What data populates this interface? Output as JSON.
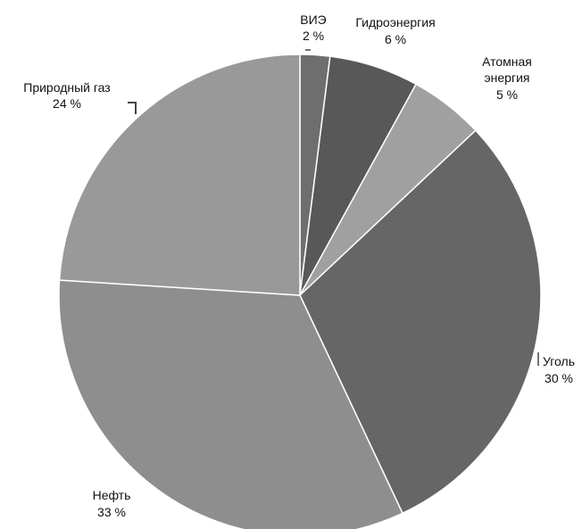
{
  "chart_data": {
    "type": "pie",
    "slices": [
      {
        "label": "ВИЭ",
        "value_label": "2 %",
        "value": 2,
        "color": "#6e6e6e"
      },
      {
        "label": "Гидроэнергия",
        "value_label": "6 %",
        "value": 6,
        "color": "#585858"
      },
      {
        "label": "Атомная энергия",
        "label_lines": [
          "Атомная",
          "энергия"
        ],
        "value_label": "5 %",
        "value": 5,
        "color": "#a0a0a0"
      },
      {
        "label": "Уголь",
        "value_label": "30 %",
        "value": 30,
        "color": "#666666"
      },
      {
        "label": "Нефть",
        "value_label": "33 %",
        "value": 33,
        "color": "#8e8e8e"
      },
      {
        "label": "Природный газ",
        "value_label": "24 %",
        "value": 24,
        "color": "#999999"
      }
    ],
    "start_angle_deg": 0,
    "direction": "clockwise",
    "legend": "none"
  }
}
